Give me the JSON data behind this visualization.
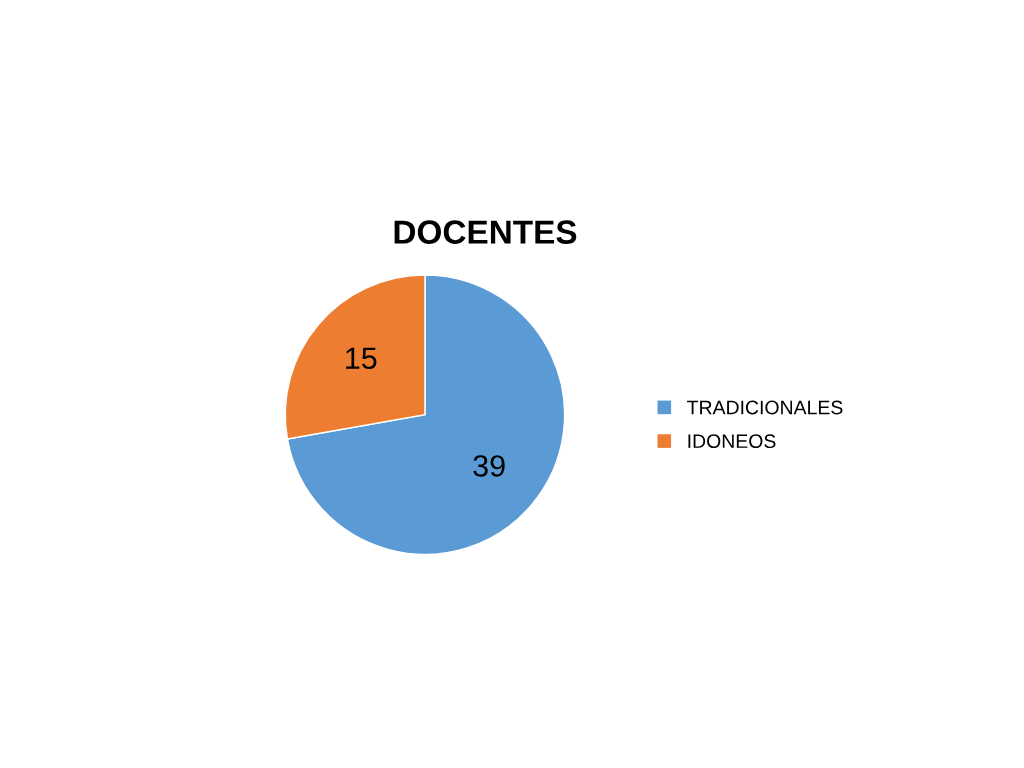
{
  "chart_data": {
    "type": "pie",
    "title": "DOCENTES",
    "categories": [
      "TRADICIONALES",
      "IDONEOS"
    ],
    "values": [
      39,
      15
    ],
    "colors": [
      "#5b9bd5",
      "#ed7d31"
    ],
    "data_labels": true,
    "legend": "right"
  }
}
